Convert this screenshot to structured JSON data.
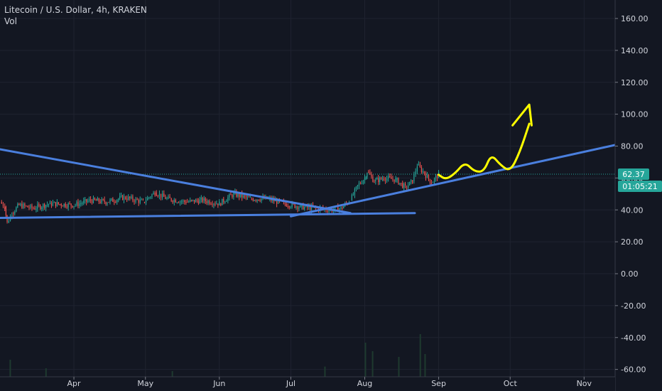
{
  "header": {
    "symbol_line": "Litecoin / U.S. Dollar, 4h, KRAKEN",
    "volume_label": "Vol"
  },
  "price_badge": {
    "last_price": "62.37",
    "countdown": "01:05:21"
  },
  "colors": {
    "background": "#131722",
    "grid": "#1f2330",
    "axis_text": "#d1d4dc",
    "trendline": "#4a7fde",
    "projection": "#ffff00",
    "badge": "#26a69a",
    "candle_up": "#26a69a",
    "candle_down": "#ef5350"
  },
  "chart_data": {
    "type": "candlestick",
    "y_axis": {
      "min": -60,
      "max": 170,
      "ticks": [
        "160.00",
        "140.00",
        "120.00",
        "100.00",
        "80.00",
        "60.00",
        "40.00",
        "20.00",
        "0.00",
        "-20.00",
        "-40.00",
        "-60.00"
      ],
      "tick_values": [
        160,
        140,
        120,
        100,
        80,
        60,
        40,
        20,
        0,
        -20,
        -40,
        -60
      ]
    },
    "x_axis": {
      "start": "2019-03-01",
      "end": "2019-12-01",
      "ticks": [
        {
          "label": "Apr",
          "date": "2019-04-01"
        },
        {
          "label": "May",
          "date": "2019-05-01"
        },
        {
          "label": "Jun",
          "date": "2019-06-01"
        },
        {
          "label": "Jul",
          "date": "2019-07-01"
        },
        {
          "label": "Aug",
          "date": "2019-08-01"
        },
        {
          "label": "Sep",
          "date": "2019-09-01"
        },
        {
          "label": "Oct",
          "date": "2019-10-01"
        },
        {
          "label": "Nov",
          "date": "2019-11-01"
        }
      ]
    },
    "price_path": [
      {
        "date": "2019-03-01",
        "close": 45
      },
      {
        "date": "2019-03-03",
        "close": 42
      },
      {
        "date": "2019-03-04",
        "close": 32
      },
      {
        "date": "2019-03-06",
        "close": 38
      },
      {
        "date": "2019-03-09",
        "close": 43
      },
      {
        "date": "2019-03-15",
        "close": 41
      },
      {
        "date": "2019-03-22",
        "close": 44
      },
      {
        "date": "2019-04-01",
        "close": 43
      },
      {
        "date": "2019-04-08",
        "close": 46
      },
      {
        "date": "2019-04-15",
        "close": 45
      },
      {
        "date": "2019-04-22",
        "close": 48
      },
      {
        "date": "2019-04-30",
        "close": 45
      },
      {
        "date": "2019-05-05",
        "close": 51
      },
      {
        "date": "2019-05-10",
        "close": 47
      },
      {
        "date": "2019-05-18",
        "close": 45
      },
      {
        "date": "2019-05-25",
        "close": 46
      },
      {
        "date": "2019-06-01",
        "close": 44
      },
      {
        "date": "2019-06-07",
        "close": 50
      },
      {
        "date": "2019-06-14",
        "close": 47
      },
      {
        "date": "2019-06-21",
        "close": 47
      },
      {
        "date": "2019-06-28",
        "close": 44
      },
      {
        "date": "2019-07-05",
        "close": 42
      },
      {
        "date": "2019-07-12",
        "close": 41
      },
      {
        "date": "2019-07-17",
        "close": 40
      },
      {
        "date": "2019-07-22",
        "close": 41
      },
      {
        "date": "2019-07-26",
        "close": 46
      },
      {
        "date": "2019-07-29",
        "close": 55
      },
      {
        "date": "2019-08-01",
        "close": 60
      },
      {
        "date": "2019-08-02",
        "close": 64
      },
      {
        "date": "2019-08-05",
        "close": 58
      },
      {
        "date": "2019-08-09",
        "close": 60
      },
      {
        "date": "2019-08-14",
        "close": 59
      },
      {
        "date": "2019-08-18",
        "close": 54
      },
      {
        "date": "2019-08-21",
        "close": 58
      },
      {
        "date": "2019-08-23",
        "close": 68
      },
      {
        "date": "2019-08-26",
        "close": 63
      },
      {
        "date": "2019-08-29",
        "close": 57
      },
      {
        "date": "2019-09-01",
        "close": 62.37
      }
    ],
    "trendlines": [
      {
        "name": "descending-resistance",
        "from": {
          "date": "2019-03-01",
          "price": 78
        },
        "to": {
          "date": "2019-07-26",
          "price": 38
        }
      },
      {
        "name": "ascending-support",
        "from": {
          "date": "2019-07-01",
          "price": 36
        },
        "to": {
          "date": "2019-11-18",
          "price": 82
        }
      },
      {
        "name": "flat-support",
        "from": {
          "date": "2019-03-01",
          "price": 35
        },
        "to": {
          "date": "2019-08-22",
          "price": 38
        }
      }
    ],
    "projection_path": [
      {
        "date": "2019-09-01",
        "price": 62
      },
      {
        "date": "2019-09-04",
        "price": 59
      },
      {
        "date": "2019-09-08",
        "price": 63
      },
      {
        "date": "2019-09-12",
        "price": 70
      },
      {
        "date": "2019-09-16",
        "price": 64
      },
      {
        "date": "2019-09-20",
        "price": 64
      },
      {
        "date": "2019-09-23",
        "price": 75
      },
      {
        "date": "2019-09-27",
        "price": 68
      },
      {
        "date": "2019-10-01",
        "price": 64
      },
      {
        "date": "2019-10-05",
        "price": 76
      },
      {
        "date": "2019-10-09",
        "price": 94
      }
    ],
    "arrow_head": [
      {
        "date": "2019-10-02",
        "price": 93
      },
      {
        "date": "2019-10-09",
        "price": 106
      },
      {
        "date": "2019-10-10",
        "price": 93
      }
    ],
    "volume_bars": [
      {
        "date": "2019-03-05",
        "value": 0.3
      },
      {
        "date": "2019-03-20",
        "value": 0.15
      },
      {
        "date": "2019-05-12",
        "value": 0.1
      },
      {
        "date": "2019-07-15",
        "value": 0.18
      },
      {
        "date": "2019-08-01",
        "value": 0.6
      },
      {
        "date": "2019-08-04",
        "value": 0.45
      },
      {
        "date": "2019-08-15",
        "value": 0.35
      },
      {
        "date": "2019-08-24",
        "value": 0.75
      },
      {
        "date": "2019-08-26",
        "value": 0.4
      }
    ],
    "last_price": 62.37
  }
}
